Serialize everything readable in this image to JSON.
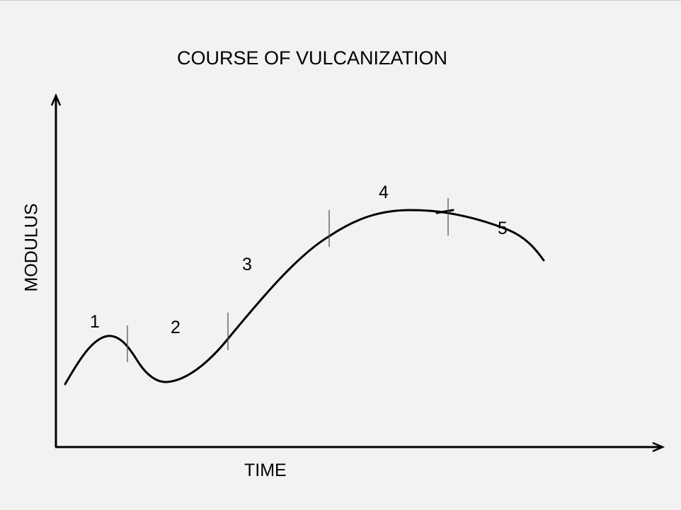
{
  "title": "COURSE OF VULCANIZATION",
  "x_axis_label": "TIME",
  "y_axis_label": "MODULUS",
  "stages": [
    "1",
    "2",
    "3",
    "4",
    "5"
  ]
}
